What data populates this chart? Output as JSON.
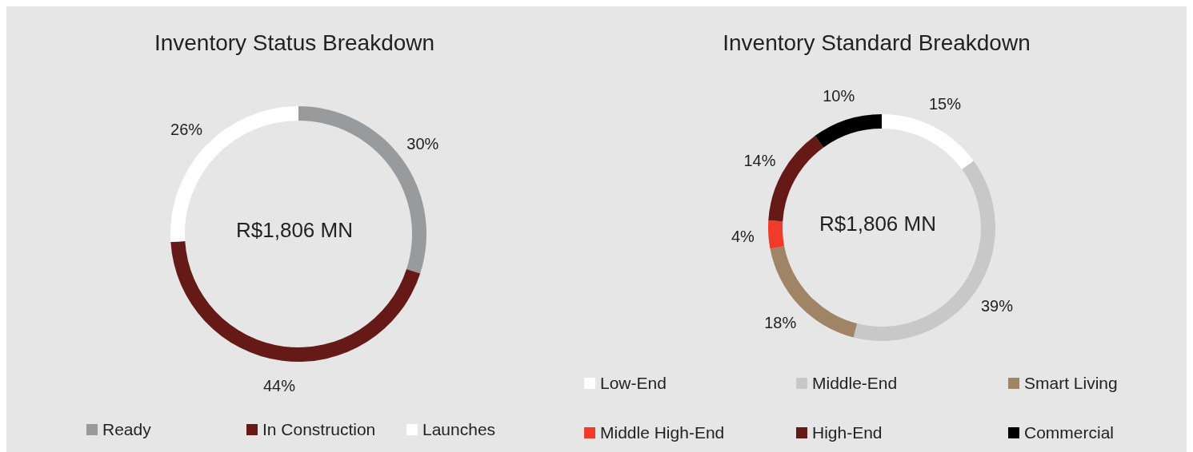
{
  "chart_data": [
    {
      "type": "donut",
      "title": "Inventory Status Breakdown",
      "categories": [
        "Ready",
        "In Construction",
        "Launches"
      ],
      "values": [
        30,
        44,
        26
      ],
      "value_labels": [
        "30%",
        "44%",
        "26%"
      ],
      "colors": [
        "#999a9c",
        "#661a17",
        "#ffffff"
      ],
      "annotations": [
        "R$1,806 MN"
      ],
      "legend": "bottom"
    },
    {
      "type": "donut",
      "title": "Inventory Standard Breakdown",
      "categories": [
        "Low-End",
        "Middle-End",
        "Smart Living",
        "Middle High-End",
        "High-End",
        "Commercial"
      ],
      "values": [
        15,
        39,
        18,
        4,
        14,
        10
      ],
      "value_labels": [
        "15%",
        "39%",
        "18%",
        "4%",
        "14%",
        "10%"
      ],
      "colors": [
        "#ffffff",
        "#c8c8c8",
        "#a08466",
        "#f03a2a",
        "#661a17",
        "#000000"
      ],
      "annotations": [
        "R$1,806 MN"
      ],
      "legend": "bottom"
    }
  ]
}
